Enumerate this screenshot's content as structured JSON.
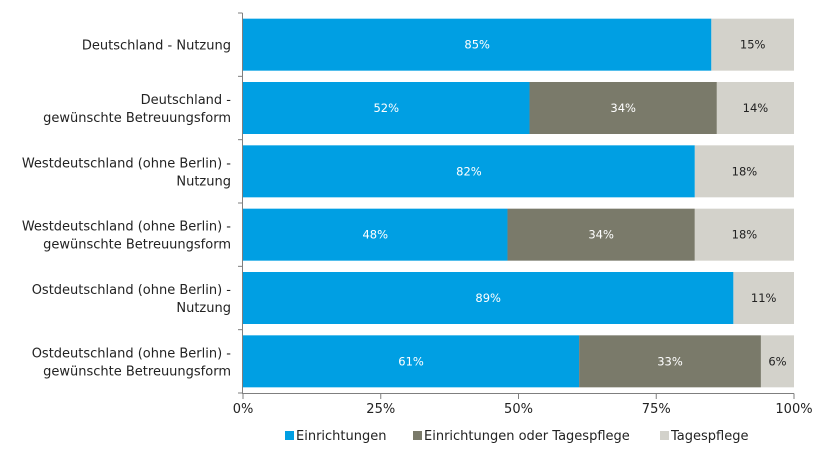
{
  "chart_data": {
    "type": "bar",
    "orientation": "horizontal",
    "stacked": true,
    "percent_stacked": true,
    "categories": [
      [
        "Deutschland - Nutzung"
      ],
      [
        "Deutschland -",
        "gewünschte Betreuungsform"
      ],
      [
        "Westdeutschland (ohne Berlin) -",
        "Nutzung"
      ],
      [
        "Westdeutschland (ohne Berlin) -",
        "gewünschte Betreuungsform"
      ],
      [
        "Ostdeutschland (ohne Berlin) -",
        "Nutzung"
      ],
      [
        "Ostdeutschland (ohne Berlin) -",
        "gewünschte Betreuungsform"
      ]
    ],
    "series": [
      {
        "name": "Einrichtungen",
        "color": "#009fe3",
        "label_color": "#ffffff",
        "values": [
          85,
          52,
          82,
          48,
          89,
          61
        ]
      },
      {
        "name": "Einrichtungen oder Tagespflege",
        "color": "#7a7a6a",
        "label_color": "#ffffff",
        "values": [
          null,
          34,
          null,
          34,
          null,
          33
        ]
      },
      {
        "name": "Tagespflege",
        "color": "#d3d2cb",
        "label_color": "#222222",
        "values": [
          15,
          14,
          18,
          18,
          11,
          6
        ]
      }
    ],
    "xlim": [
      0,
      100
    ],
    "x_ticks": [
      "0%",
      "25%",
      "50%",
      "75%",
      "100%"
    ],
    "grid": false,
    "legend_position": "bottom"
  }
}
